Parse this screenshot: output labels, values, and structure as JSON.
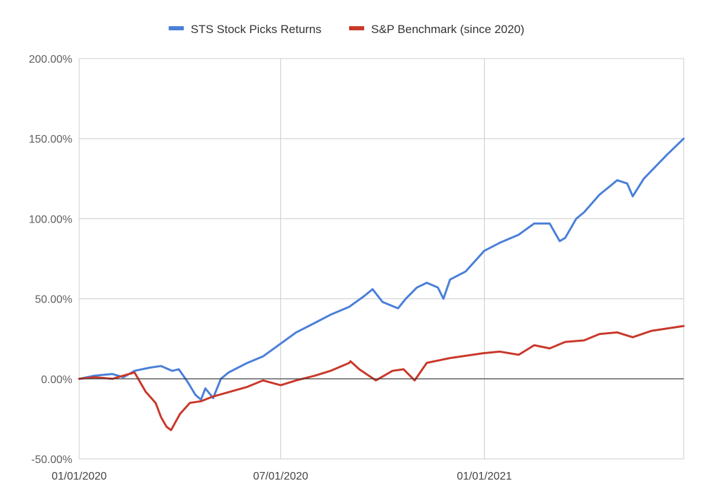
{
  "chart_data": {
    "type": "line",
    "title": "",
    "xlabel": "",
    "ylabel": "",
    "x_range": [
      "2020-01-01",
      "2021-06-30"
    ],
    "ylim": [
      -50,
      200
    ],
    "y_ticks": [
      -50,
      0,
      50,
      100,
      150,
      200
    ],
    "y_tick_labels": [
      "-50.00%",
      "0.00%",
      "50.00%",
      "100.00%",
      "150.00%",
      "200.00%"
    ],
    "x_ticks": [
      "2020-01-01",
      "2020-07-01",
      "2021-01-01"
    ],
    "x_tick_labels": [
      "01/01/2020",
      "07/01/2020",
      "01/01/2021"
    ],
    "grid": true,
    "legend_position": "top",
    "zero_line": true,
    "series": [
      {
        "name": "STS Stock Picks Returns",
        "color": "#4a7fd9",
        "points": [
          [
            "2020-01-01",
            0
          ],
          [
            "2020-01-15",
            2
          ],
          [
            "2020-01-31",
            3
          ],
          [
            "2020-02-10",
            1
          ],
          [
            "2020-02-20",
            5
          ],
          [
            "2020-03-05",
            7
          ],
          [
            "2020-03-15",
            8
          ],
          [
            "2020-03-25",
            5
          ],
          [
            "2020-03-31",
            6
          ],
          [
            "2020-04-08",
            -2
          ],
          [
            "2020-04-15",
            -10
          ],
          [
            "2020-04-20",
            -13
          ],
          [
            "2020-04-24",
            -6
          ],
          [
            "2020-05-01",
            -12
          ],
          [
            "2020-05-08",
            0
          ],
          [
            "2020-05-15",
            4
          ],
          [
            "2020-06-01",
            10
          ],
          [
            "2020-06-15",
            14
          ],
          [
            "2020-07-01",
            22
          ],
          [
            "2020-07-15",
            29
          ],
          [
            "2020-08-01",
            35
          ],
          [
            "2020-08-15",
            40
          ],
          [
            "2020-09-01",
            45
          ],
          [
            "2020-09-15",
            52
          ],
          [
            "2020-09-22",
            56
          ],
          [
            "2020-10-01",
            48
          ],
          [
            "2020-10-15",
            44
          ],
          [
            "2020-10-22",
            50
          ],
          [
            "2020-11-01",
            57
          ],
          [
            "2020-11-10",
            60
          ],
          [
            "2020-11-20",
            57
          ],
          [
            "2020-11-25",
            50
          ],
          [
            "2020-12-01",
            62
          ],
          [
            "2020-12-15",
            67
          ],
          [
            "2021-01-01",
            80
          ],
          [
            "2021-01-15",
            85
          ],
          [
            "2021-02-01",
            90
          ],
          [
            "2021-02-15",
            97
          ],
          [
            "2021-03-01",
            97
          ],
          [
            "2021-03-10",
            86
          ],
          [
            "2021-03-15",
            88
          ],
          [
            "2021-03-25",
            100
          ],
          [
            "2021-04-01",
            104
          ],
          [
            "2021-04-15",
            115
          ],
          [
            "2021-05-01",
            124
          ],
          [
            "2021-05-10",
            122
          ],
          [
            "2021-05-15",
            114
          ],
          [
            "2021-05-25",
            125
          ],
          [
            "2021-06-15",
            140
          ],
          [
            "2021-06-30",
            150
          ]
        ]
      },
      {
        "name": "S&P Benchmark (since 2020)",
        "color": "#c9382a",
        "points": [
          [
            "2020-01-01",
            0
          ],
          [
            "2020-01-15",
            1
          ],
          [
            "2020-01-31",
            0
          ],
          [
            "2020-02-15",
            3
          ],
          [
            "2020-02-20",
            4
          ],
          [
            "2020-03-01",
            -8
          ],
          [
            "2020-03-10",
            -15
          ],
          [
            "2020-03-15",
            -24
          ],
          [
            "2020-03-20",
            -30
          ],
          [
            "2020-03-24",
            -32
          ],
          [
            "2020-04-01",
            -22
          ],
          [
            "2020-04-10",
            -15
          ],
          [
            "2020-04-20",
            -14
          ],
          [
            "2020-05-01",
            -11
          ],
          [
            "2020-06-01",
            -5
          ],
          [
            "2020-06-15",
            -1
          ],
          [
            "2020-07-01",
            -4
          ],
          [
            "2020-07-15",
            -1
          ],
          [
            "2020-08-01",
            2
          ],
          [
            "2020-08-15",
            5
          ],
          [
            "2020-09-01",
            10
          ],
          [
            "2020-09-02",
            11
          ],
          [
            "2020-09-10",
            6
          ],
          [
            "2020-09-25",
            -1
          ],
          [
            "2020-10-10",
            5
          ],
          [
            "2020-10-20",
            6
          ],
          [
            "2020-10-30",
            -1
          ],
          [
            "2020-11-10",
            10
          ],
          [
            "2020-12-01",
            13
          ],
          [
            "2020-12-31",
            16
          ],
          [
            "2021-01-15",
            17
          ],
          [
            "2021-02-01",
            15
          ],
          [
            "2021-02-15",
            21
          ],
          [
            "2021-03-01",
            19
          ],
          [
            "2021-03-15",
            23
          ],
          [
            "2021-04-01",
            24
          ],
          [
            "2021-04-15",
            28
          ],
          [
            "2021-05-01",
            29
          ],
          [
            "2021-05-15",
            26
          ],
          [
            "2021-06-01",
            30
          ],
          [
            "2021-06-30",
            33
          ]
        ]
      }
    ]
  }
}
